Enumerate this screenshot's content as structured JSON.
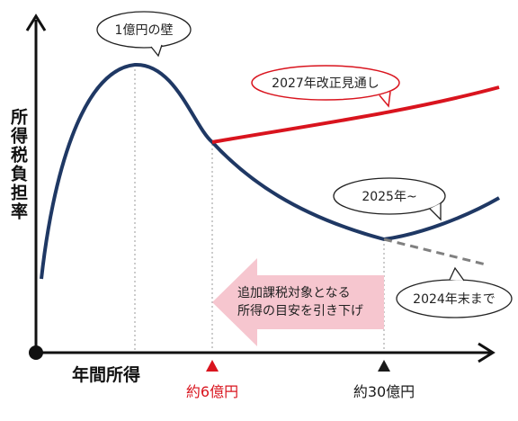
{
  "axes": {
    "y_label": "所得税負担率",
    "x_label": "年間所得"
  },
  "markers": {
    "six_oku": "約6億円",
    "thirty_oku": "約30億円"
  },
  "callouts": {
    "wall": "1億円の壁",
    "revision_2027": "2027年改正見通し",
    "from_2025": "2025年~",
    "until_2024": "2024年末まで"
  },
  "arrow_note": {
    "line1": "追加課税対象となる",
    "line2": "所得の目安を引き下げ"
  },
  "colors": {
    "curve": "#1f3864",
    "revision_line": "#d9141e",
    "dashed_line": "#808080",
    "marker_red": "#d9141e",
    "marker_black": "#1a1a1a",
    "arrow_fill": "#f6c6cf"
  }
}
